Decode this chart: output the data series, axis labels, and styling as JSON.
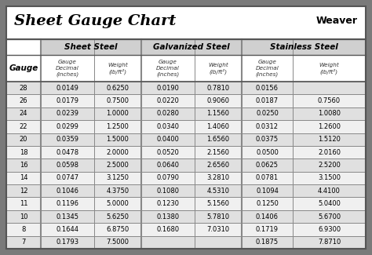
{
  "title": "Sheet Gauge Chart",
  "bg_outer": "#7a7a7a",
  "bg_inner": "#ffffff",
  "header_col_bg": "#d0d0d0",
  "row_even_bg": "#e0e0e0",
  "row_odd_bg": "#f0f0f0",
  "col_headers": [
    "Sheet Steel",
    "Galvanized Steel",
    "Stainless Steel"
  ],
  "gauge_label": "Gauge",
  "sub_col1": "Gauge\nDecimal\n(inches)",
  "sub_col2": "Weight\n(lb/ft²)",
  "gauges": [
    "28",
    "26",
    "24",
    "22",
    "20",
    "18",
    "16",
    "14",
    "12",
    "11",
    "10",
    "8",
    "7"
  ],
  "sheet_steel": [
    [
      "0.0149",
      "0.6250"
    ],
    [
      "0.0179",
      "0.7500"
    ],
    [
      "0.0239",
      "1.0000"
    ],
    [
      "0.0299",
      "1.2500"
    ],
    [
      "0.0359",
      "1.5000"
    ],
    [
      "0.0478",
      "2.0000"
    ],
    [
      "0.0598",
      "2.5000"
    ],
    [
      "0.0747",
      "3.1250"
    ],
    [
      "0.1046",
      "4.3750"
    ],
    [
      "0.1196",
      "5.0000"
    ],
    [
      "0.1345",
      "5.6250"
    ],
    [
      "0.1644",
      "6.8750"
    ],
    [
      "0.1793",
      "7.5000"
    ]
  ],
  "galvanized_steel": [
    [
      "0.0190",
      "0.7810"
    ],
    [
      "0.0220",
      "0.9060"
    ],
    [
      "0.0280",
      "1.1560"
    ],
    [
      "0.0340",
      "1.4060"
    ],
    [
      "0.0400",
      "1.6560"
    ],
    [
      "0.0520",
      "2.1560"
    ],
    [
      "0.0640",
      "2.6560"
    ],
    [
      "0.0790",
      "3.2810"
    ],
    [
      "0.1080",
      "4.5310"
    ],
    [
      "0.1230",
      "5.1560"
    ],
    [
      "0.1380",
      "5.7810"
    ],
    [
      "0.1680",
      "7.0310"
    ],
    [
      "",
      ""
    ]
  ],
  "stainless_steel": [
    [
      "0.0156",
      ""
    ],
    [
      "0.0187",
      "0.7560"
    ],
    [
      "0.0250",
      "1.0080"
    ],
    [
      "0.0312",
      "1.2600"
    ],
    [
      "0.0375",
      "1.5120"
    ],
    [
      "0.0500",
      "2.0160"
    ],
    [
      "0.0625",
      "2.5200"
    ],
    [
      "0.0781",
      "3.1500"
    ],
    [
      "0.1094",
      "4.4100"
    ],
    [
      "0.1250",
      "5.0400"
    ],
    [
      "0.1406",
      "5.6700"
    ],
    [
      "0.1719",
      "6.9300"
    ],
    [
      "0.1875",
      "7.8710"
    ]
  ],
  "fig_width": 4.74,
  "fig_height": 3.25,
  "dpi": 100
}
